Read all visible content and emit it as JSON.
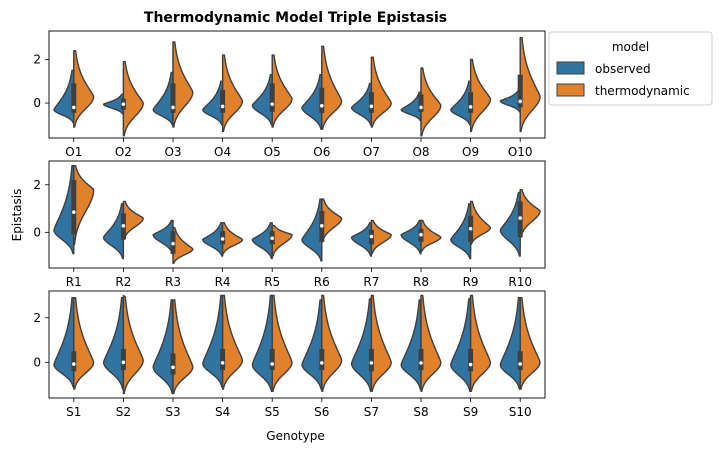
{
  "chart_data": {
    "type": "violin",
    "title": "Thermodynamic Model Triple Epistasis",
    "xlabel": "Genotype",
    "ylabel": "Epistasis",
    "legend": {
      "title": "model",
      "placement": "outside-right",
      "entries": [
        {
          "name": "observed",
          "color": "#1f77b4"
        },
        {
          "name": "thermodynamic",
          "color": "#ff7f0e"
        }
      ]
    },
    "colors": {
      "observed": "#3274a1",
      "thermodynamic": "#e1812c",
      "edge": "#3f3f3f"
    },
    "panels": [
      {
        "categories": [
          "O1",
          "O2",
          "O3",
          "O4",
          "O5",
          "O6",
          "O7",
          "O8",
          "O9",
          "O10"
        ],
        "ylim": [
          -1.6,
          3.3
        ],
        "yticks": [
          0,
          2
        ],
        "groups": [
          {
            "observed": {
              "min": -0.9,
              "q1": -0.45,
              "median": -0.2,
              "q3": 0.2,
              "max": 1.5,
              "mode": -0.3
            },
            "thermodynamic": {
              "min": -1.1,
              "q1": -0.4,
              "median": -0.2,
              "q3": 0.9,
              "max": 2.4,
              "mode": 0.3
            }
          },
          {
            "observed": {
              "min": -0.5,
              "q1": -0.15,
              "median": -0.05,
              "q3": 0.1,
              "max": 0.4,
              "mode": -0.05
            },
            "thermodynamic": {
              "min": -1.5,
              "q1": -0.3,
              "median": -0.05,
              "q3": 0.2,
              "max": 1.9,
              "mode": 0.0
            }
          },
          {
            "observed": {
              "min": -1.0,
              "q1": -0.45,
              "median": -0.2,
              "q3": 0.5,
              "max": 1.4,
              "mode": -0.3
            },
            "thermodynamic": {
              "min": -1.1,
              "q1": -0.35,
              "median": -0.2,
              "q3": 0.9,
              "max": 2.8,
              "mode": 0.5
            }
          },
          {
            "observed": {
              "min": -1.0,
              "q1": -0.45,
              "median": -0.15,
              "q3": 0.15,
              "max": 1.0,
              "mode": -0.3
            },
            "thermodynamic": {
              "min": -1.3,
              "q1": -0.4,
              "median": -0.15,
              "q3": 0.6,
              "max": 2.2,
              "mode": 0.1
            }
          },
          {
            "observed": {
              "min": -1.0,
              "q1": -0.4,
              "median": -0.05,
              "q3": 0.3,
              "max": 1.3,
              "mode": -0.1
            },
            "thermodynamic": {
              "min": -1.1,
              "q1": -0.35,
              "median": -0.05,
              "q3": 0.9,
              "max": 2.2,
              "mode": 0.2
            }
          },
          {
            "observed": {
              "min": -1.2,
              "q1": -0.45,
              "median": -0.15,
              "q3": 0.2,
              "max": 1.3,
              "mode": -0.2
            },
            "thermodynamic": {
              "min": -1.2,
              "q1": -0.4,
              "median": -0.1,
              "q3": 0.7,
              "max": 2.6,
              "mode": 0.1
            }
          },
          {
            "observed": {
              "min": -1.0,
              "q1": -0.45,
              "median": -0.15,
              "q3": 0.1,
              "max": 0.9,
              "mode": -0.2
            },
            "thermodynamic": {
              "min": -1.1,
              "q1": -0.4,
              "median": -0.15,
              "q3": 0.5,
              "max": 2.1,
              "mode": 0.0
            }
          },
          {
            "observed": {
              "min": -0.8,
              "q1": -0.4,
              "median": -0.2,
              "q3": 0.05,
              "max": 0.5,
              "mode": -0.3
            },
            "thermodynamic": {
              "min": -1.5,
              "q1": -0.4,
              "median": -0.2,
              "q3": 0.4,
              "max": 1.6,
              "mode": -0.1
            }
          },
          {
            "observed": {
              "min": -1.0,
              "q1": -0.45,
              "median": -0.2,
              "q3": 0.1,
              "max": 1.0,
              "mode": -0.3
            },
            "thermodynamic": {
              "min": -1.3,
              "q1": -0.45,
              "median": -0.15,
              "q3": 0.5,
              "max": 2.0,
              "mode": 0.2
            }
          },
          {
            "observed": {
              "min": -0.4,
              "q1": -0.1,
              "median": 0.05,
              "q3": 0.3,
              "max": 0.6,
              "mode": 0.1
            },
            "thermodynamic": {
              "min": -1.3,
              "q1": -0.2,
              "median": 0.1,
              "q3": 1.3,
              "max": 3.0,
              "mode": 0.3
            }
          }
        ]
      },
      {
        "categories": [
          "R1",
          "R2",
          "R3",
          "R4",
          "R5",
          "R6",
          "R7",
          "R8",
          "R9",
          "R10"
        ],
        "ylim": [
          -1.5,
          3.0
        ],
        "yticks": [
          0,
          2
        ],
        "groups": [
          {
            "observed": {
              "min": -0.9,
              "q1": -0.1,
              "median": 0.5,
              "q3": 1.6,
              "max": 2.8,
              "mode": 0.1
            },
            "thermodynamic": {
              "min": -0.5,
              "q1": 0.4,
              "median": 1.2,
              "q3": 2.2,
              "max": 2.8,
              "mode": 1.8
            }
          },
          {
            "observed": {
              "min": -1.1,
              "q1": -0.3,
              "median": 0.05,
              "q3": 0.7,
              "max": 1.2,
              "mode": -0.2
            },
            "thermodynamic": {
              "min": -0.3,
              "q1": 0.1,
              "median": 0.5,
              "q3": 0.8,
              "max": 1.3,
              "mode": 0.6
            }
          },
          {
            "observed": {
              "min": -0.9,
              "q1": -0.6,
              "median": -0.35,
              "q3": 0.05,
              "max": 0.5,
              "mode": -0.1
            },
            "thermodynamic": {
              "min": -1.3,
              "q1": -0.9,
              "median": -0.6,
              "q3": -0.3,
              "max": 0.2,
              "mode": -0.7
            }
          },
          {
            "observed": {
              "min": -1.0,
              "q1": -0.5,
              "median": -0.25,
              "q3": 0.05,
              "max": 0.4,
              "mode": -0.3
            },
            "thermodynamic": {
              "min": -0.9,
              "q1": -0.5,
              "median": -0.3,
              "q3": -0.05,
              "max": 0.4,
              "mode": -0.3
            }
          },
          {
            "observed": {
              "min": -1.1,
              "q1": -0.5,
              "median": -0.25,
              "q3": 0.05,
              "max": 0.4,
              "mode": -0.3
            },
            "thermodynamic": {
              "min": -1.0,
              "q1": -0.5,
              "median": -0.25,
              "q3": 0.0,
              "max": 0.3,
              "mode": -0.1
            }
          },
          {
            "observed": {
              "min": -1.2,
              "q1": -0.4,
              "median": 0.05,
              "q3": 0.6,
              "max": 1.4,
              "mode": -0.3
            },
            "thermodynamic": {
              "min": -0.4,
              "q1": 0.1,
              "median": 0.5,
              "q3": 0.9,
              "max": 1.4,
              "mode": 0.6
            }
          },
          {
            "observed": {
              "min": -1.0,
              "q1": -0.5,
              "median": -0.2,
              "q3": 0.05,
              "max": 0.4,
              "mode": -0.2
            },
            "thermodynamic": {
              "min": -0.9,
              "q1": -0.4,
              "median": -0.15,
              "q3": 0.1,
              "max": 0.5,
              "mode": -0.1
            }
          },
          {
            "observed": {
              "min": -0.9,
              "q1": -0.4,
              "median": -0.1,
              "q3": 0.1,
              "max": 0.5,
              "mode": -0.1
            },
            "thermodynamic": {
              "min": -0.8,
              "q1": -0.4,
              "median": -0.1,
              "q3": 0.15,
              "max": 0.5,
              "mode": -0.2
            }
          },
          {
            "observed": {
              "min": -1.1,
              "q1": -0.4,
              "median": 0.0,
              "q3": 0.5,
              "max": 1.2,
              "mode": -0.3
            },
            "thermodynamic": {
              "min": -0.5,
              "q1": 0.0,
              "median": 0.3,
              "q3": 0.7,
              "max": 1.3,
              "mode": 0.2
            }
          },
          {
            "observed": {
              "min": -1.0,
              "q1": -0.2,
              "median": 0.4,
              "q3": 1.0,
              "max": 1.7,
              "mode": 0.1
            },
            "thermodynamic": {
              "min": -0.2,
              "q1": 0.4,
              "median": 0.8,
              "q3": 1.3,
              "max": 1.8,
              "mode": 0.9
            }
          }
        ]
      },
      {
        "categories": [
          "S1",
          "S2",
          "S3",
          "S4",
          "S5",
          "S6",
          "S7",
          "S8",
          "S9",
          "S10"
        ],
        "ylim": [
          -1.6,
          3.2
        ],
        "yticks": [
          0,
          2
        ],
        "groups": [
          {
            "observed": {
              "min": -1.1,
              "q1": -0.4,
              "median": -0.1,
              "q3": 0.25,
              "max": 2.9,
              "mode": -0.1
            },
            "thermodynamic": {
              "min": -1.2,
              "q1": -0.35,
              "median": -0.05,
              "q3": 0.5,
              "max": 2.9,
              "mode": 0.0
            }
          },
          {
            "observed": {
              "min": -1.2,
              "q1": -0.3,
              "median": 0.0,
              "q3": 0.35,
              "max": 2.9,
              "mode": 0.0
            },
            "thermodynamic": {
              "min": -1.4,
              "q1": -0.35,
              "median": 0.0,
              "q3": 0.6,
              "max": 3.0,
              "mode": 0.1
            }
          },
          {
            "observed": {
              "min": -1.4,
              "q1": -0.55,
              "median": -0.25,
              "q3": 0.1,
              "max": 2.8,
              "mode": -0.2
            },
            "thermodynamic": {
              "min": -1.4,
              "q1": -0.5,
              "median": -0.2,
              "q3": 0.4,
              "max": 2.8,
              "mode": -0.2
            }
          },
          {
            "observed": {
              "min": -1.1,
              "q1": -0.35,
              "median": -0.05,
              "q3": 0.25,
              "max": 3.0,
              "mode": -0.05
            },
            "thermodynamic": {
              "min": -1.2,
              "q1": -0.3,
              "median": 0.0,
              "q3": 0.6,
              "max": 3.0,
              "mode": 0.1
            }
          },
          {
            "observed": {
              "min": -1.3,
              "q1": -0.35,
              "median": -0.1,
              "q3": 0.4,
              "max": 3.0,
              "mode": -0.1
            },
            "thermodynamic": {
              "min": -1.3,
              "q1": -0.35,
              "median": -0.05,
              "q3": 0.6,
              "max": 3.0,
              "mode": 0.0
            }
          },
          {
            "observed": {
              "min": -1.2,
              "q1": -0.35,
              "median": -0.05,
              "q3": 0.3,
              "max": 2.8,
              "mode": -0.1
            },
            "thermodynamic": {
              "min": -1.3,
              "q1": -0.3,
              "median": 0.0,
              "q3": 0.6,
              "max": 3.0,
              "mode": 0.1
            }
          },
          {
            "observed": {
              "min": -1.3,
              "q1": -0.4,
              "median": -0.05,
              "q3": 0.4,
              "max": 2.9,
              "mode": -0.05
            },
            "thermodynamic": {
              "min": -1.3,
              "q1": -0.35,
              "median": 0.0,
              "q3": 0.6,
              "max": 3.0,
              "mode": 0.0
            }
          },
          {
            "observed": {
              "min": -1.2,
              "q1": -0.35,
              "median": -0.05,
              "q3": 0.3,
              "max": 2.8,
              "mode": -0.1
            },
            "thermodynamic": {
              "min": -1.3,
              "q1": -0.3,
              "median": 0.0,
              "q3": 0.6,
              "max": 3.0,
              "mode": 0.0
            }
          },
          {
            "observed": {
              "min": -1.3,
              "q1": -0.4,
              "median": -0.15,
              "q3": 0.3,
              "max": 2.9,
              "mode": -0.1
            },
            "thermodynamic": {
              "min": -1.3,
              "q1": -0.35,
              "median": -0.05,
              "q3": 0.6,
              "max": 3.0,
              "mode": 0.0
            }
          },
          {
            "observed": {
              "min": -1.2,
              "q1": -0.35,
              "median": -0.1,
              "q3": 0.2,
              "max": 2.9,
              "mode": -0.1
            },
            "thermodynamic": {
              "min": -1.2,
              "q1": -0.3,
              "median": -0.05,
              "q3": 0.5,
              "max": 2.9,
              "mode": 0.0
            }
          }
        ]
      }
    ]
  }
}
